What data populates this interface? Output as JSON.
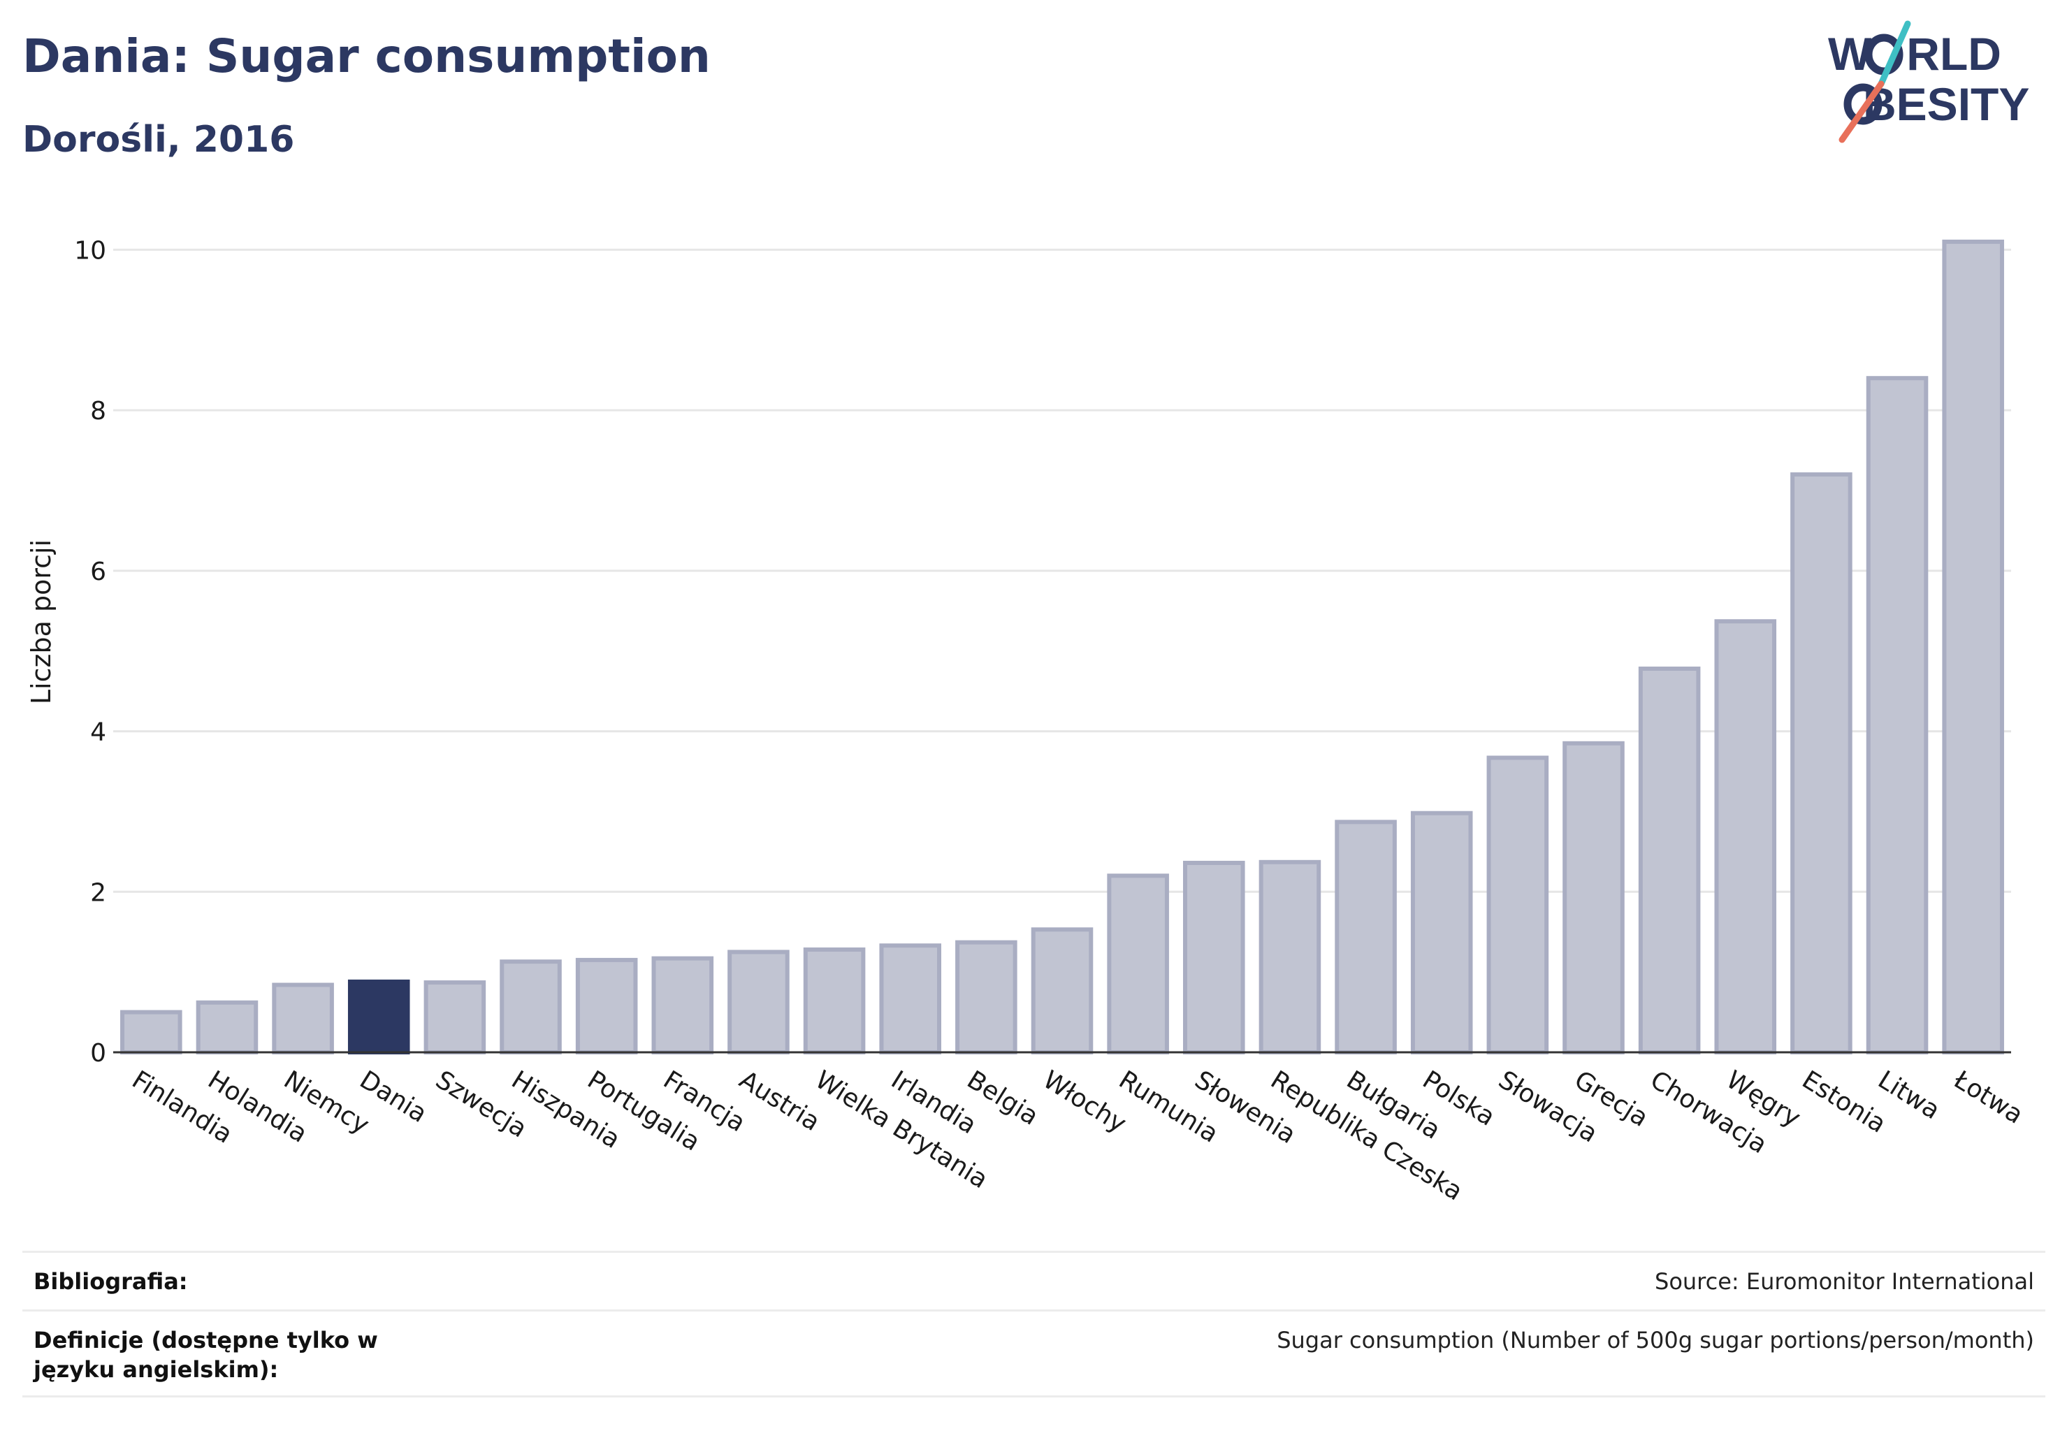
{
  "header": {
    "title": "Dania: Sugar consumption",
    "subtitle": "Dorośli, 2016"
  },
  "logo": {
    "line1": "WORLD",
    "line2": "OBESITY",
    "line1_rest": "W",
    "line1_tail": "RLD",
    "line2_tail": "BESITY",
    "colors": {
      "text": "#2c3862",
      "teal": "#3fbfc4",
      "coral": "#e8705a"
    }
  },
  "chart_data": {
    "type": "bar",
    "title": "Dania: Sugar consumption",
    "subtitle": "Dorośli, 2016",
    "xlabel": "",
    "ylabel": "Liczba porcji",
    "ylim": [
      0,
      10.5
    ],
    "yticks": [
      0,
      2,
      4,
      6,
      8,
      10
    ],
    "grid": true,
    "highlight": "Dania",
    "categories": [
      "Finlandia",
      "Holandia",
      "Niemcy",
      "Dania",
      "Szwecja",
      "Hiszpania",
      "Portugalia",
      "Francja",
      "Austria",
      "Wielka Brytania",
      "Irlandia",
      "Belgia",
      "Włochy",
      "Rumunia",
      "Słowenia",
      "Republika Czeska",
      "Bułgaria",
      "Polska",
      "Słowacja",
      "Grecja",
      "Chorwacja",
      "Węgry",
      "Estonia",
      "Litwa",
      "Łotwa"
    ],
    "values": [
      0.5,
      0.62,
      0.84,
      0.88,
      0.87,
      1.13,
      1.15,
      1.17,
      1.25,
      1.28,
      1.33,
      1.37,
      1.53,
      2.2,
      2.36,
      2.37,
      2.87,
      2.98,
      3.67,
      3.85,
      4.78,
      5.37,
      7.2,
      8.4,
      10.1
    ],
    "colors": {
      "bar": "#c1c4d2",
      "bar_border": "#a9adc2",
      "highlight": "#2c3862",
      "grid": "#e6e6e6",
      "axis": "#333333"
    }
  },
  "sources": {
    "bibliography_label": "Bibliografia:",
    "bibliography_value": "Source: Euromonitor International",
    "definitions_label": "Definicje (dostępne tylko w języku angielskim):",
    "definitions_value": "Sugar consumption (Number of 500g sugar portions/person/month)"
  }
}
